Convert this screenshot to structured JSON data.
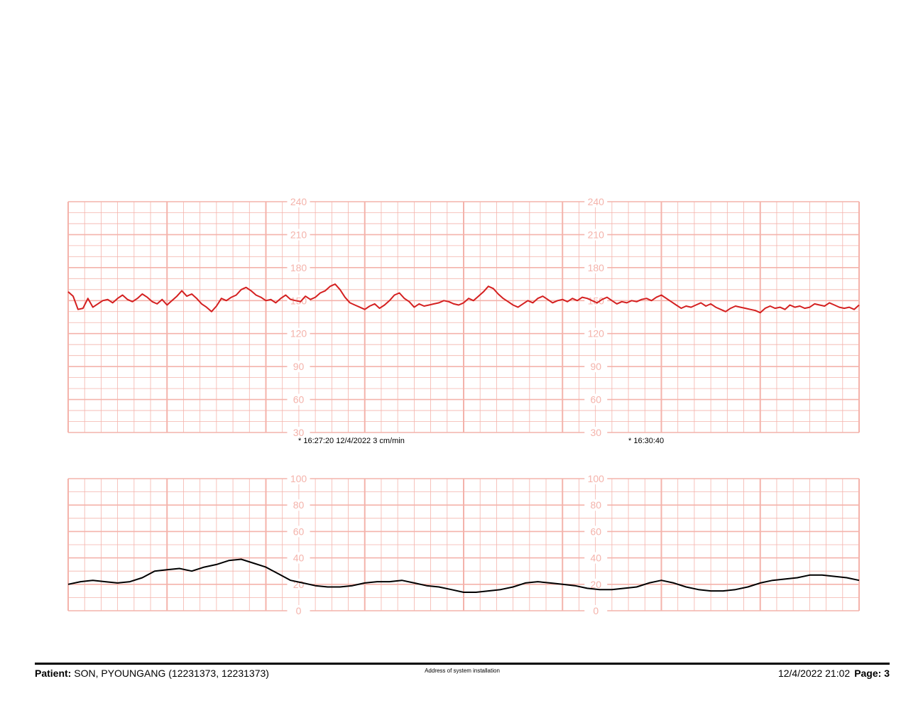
{
  "colors": {
    "grid": "#f4b3ab",
    "fhr_trace": "#d42020",
    "uc_trace": "#000000",
    "text": "#000000"
  },
  "footer": {
    "patient_label": "Patient:",
    "patient_value": "SON, PYOUNGANG (12231373, 12231373)",
    "address": "Address of system installation",
    "datetime": "12/4/2022 21:02",
    "page_label": "Page: 3"
  },
  "chart_data": [
    {
      "type": "line",
      "ylim": [
        30,
        240
      ],
      "y_ticks": [
        "240",
        "210",
        "180",
        "150",
        "120",
        "90",
        "60",
        "30"
      ],
      "annotations": [
        "* 16:27:20  12/4/2022  3 cm/min",
        "* 16:30:40"
      ],
      "series": [
        {
          "x": [
            0,
            0.1,
            0.2,
            0.3,
            0.4,
            0.5,
            0.6,
            0.7,
            0.8,
            0.9,
            1.0,
            1.1,
            1.2,
            1.3,
            1.4,
            1.5,
            1.6,
            1.7,
            1.8,
            1.9,
            2.0,
            2.1,
            2.2,
            2.3,
            2.4,
            2.5,
            2.6,
            2.7,
            2.8,
            2.9,
            3.0,
            3.1,
            3.2,
            3.3,
            3.4,
            3.5,
            3.6,
            3.7,
            3.8,
            3.9,
            4.0,
            4.1,
            4.2,
            4.3,
            4.4,
            4.5,
            4.6,
            4.7,
            4.8,
            4.9,
            5.0,
            5.1,
            5.2,
            5.3,
            5.4,
            5.5,
            5.6,
            5.7,
            5.8,
            5.9,
            6.0,
            6.1,
            6.2,
            6.3,
            6.4,
            6.5,
            6.6,
            6.7,
            6.8,
            6.9,
            7.0,
            7.1,
            7.2,
            7.3,
            7.4,
            7.5,
            7.6,
            7.7,
            7.8,
            7.9,
            8.0
          ],
          "values": [
            158,
            154,
            142,
            143,
            152,
            144,
            147,
            150,
            151,
            148,
            152,
            155,
            151,
            149,
            152,
            156,
            153,
            149,
            147,
            151,
            146,
            150,
            154,
            159,
            154,
            156,
            152,
            147,
            144,
            140,
            145,
            152,
            150,
            153,
            155,
            160,
            162,
            159,
            155,
            153,
            150,
            151,
            148,
            152,
            155,
            151,
            150,
            149,
            154,
            151,
            153,
            157,
            159,
            163,
            165,
            160,
            153,
            148,
            146,
            144,
            142,
            145,
            147,
            143,
            146,
            150,
            155,
            157,
            152,
            149,
            144,
            147,
            145,
            146,
            147,
            148,
            150,
            149,
            147,
            146,
            148
          ]
        },
        {
          "x": [
            8.0,
            8.1,
            8.2,
            8.3,
            8.4,
            8.5,
            8.6,
            8.7,
            8.8,
            8.9,
            9.0,
            9.1,
            9.2,
            9.3,
            9.4,
            9.5,
            9.6,
            9.7,
            9.8,
            9.9,
            10.0,
            10.1,
            10.2,
            10.3,
            10.4,
            10.5,
            10.6,
            10.7,
            10.8,
            10.9,
            11.0,
            11.1,
            11.2,
            11.3,
            11.4,
            11.5,
            11.6,
            11.7,
            11.8,
            11.9,
            12.0,
            12.1,
            12.2,
            12.3,
            12.4,
            12.5,
            12.6,
            12.7,
            12.8,
            12.9,
            13.0,
            13.1,
            13.2,
            13.3,
            13.4,
            13.5,
            13.6,
            13.7,
            13.8,
            13.9,
            14.0,
            14.1,
            14.2,
            14.3,
            14.4,
            14.5,
            14.6,
            14.7,
            14.8,
            14.9,
            15.0,
            15.1,
            15.2,
            15.3,
            15.4,
            15.5,
            15.6,
            15.7,
            15.8,
            15.9,
            16.0
          ],
          "values": [
            148,
            152,
            150,
            154,
            158,
            163,
            161,
            156,
            152,
            149,
            146,
            144,
            147,
            150,
            148,
            152,
            154,
            151,
            148,
            150,
            151,
            149,
            152,
            150,
            153,
            152,
            150,
            148,
            151,
            153,
            150,
            147,
            149,
            148,
            150,
            149,
            151,
            152,
            150,
            153,
            155,
            152,
            149,
            146,
            143,
            145,
            144,
            146,
            148,
            145,
            147,
            144,
            142,
            140,
            143,
            145,
            144,
            143,
            142,
            141,
            139,
            143,
            145,
            143,
            144,
            142,
            146,
            144,
            145,
            143,
            144,
            147,
            146,
            145,
            148,
            146,
            144,
            143,
            144,
            142,
            146
          ]
        }
      ]
    },
    {
      "type": "line",
      "ylim": [
        0,
        100
      ],
      "y_ticks": [
        "100",
        "80",
        "60",
        "40",
        "20",
        "0"
      ],
      "series": [
        {
          "x": [
            0,
            0.25,
            0.5,
            0.75,
            1.0,
            1.25,
            1.5,
            1.75,
            2.0,
            2.25,
            2.5,
            2.75,
            3.0,
            3.25,
            3.5,
            3.75,
            4.0,
            4.25,
            4.5,
            4.75,
            5.0,
            5.25,
            5.5,
            5.75,
            6.0,
            6.25,
            6.5,
            6.75,
            7.0,
            7.25,
            7.5,
            7.75,
            8.0,
            8.25,
            8.5,
            8.75,
            9.0,
            9.25,
            9.5,
            9.75,
            10.0,
            10.25,
            10.5,
            10.75,
            11.0,
            11.25,
            11.5,
            11.75,
            12.0,
            12.25,
            12.5,
            12.75,
            13.0,
            13.25,
            13.5,
            13.75,
            14.0,
            14.25,
            14.5,
            14.75,
            15.0,
            15.25,
            15.5,
            15.75,
            16.0
          ],
          "values": [
            20,
            22,
            23,
            22,
            21,
            22,
            25,
            30,
            31,
            32,
            30,
            33,
            35,
            38,
            39,
            36,
            33,
            28,
            23,
            21,
            19,
            18,
            18,
            19,
            21,
            22,
            22,
            23,
            21,
            19,
            18,
            16,
            14,
            14,
            15,
            16,
            18,
            21,
            22,
            21,
            20,
            19,
            17,
            16,
            16,
            17,
            18,
            21,
            23,
            21,
            18,
            16,
            15,
            15,
            16,
            18,
            21,
            23,
            24,
            25,
            27,
            27,
            26,
            25,
            23
          ]
        }
      ]
    }
  ]
}
